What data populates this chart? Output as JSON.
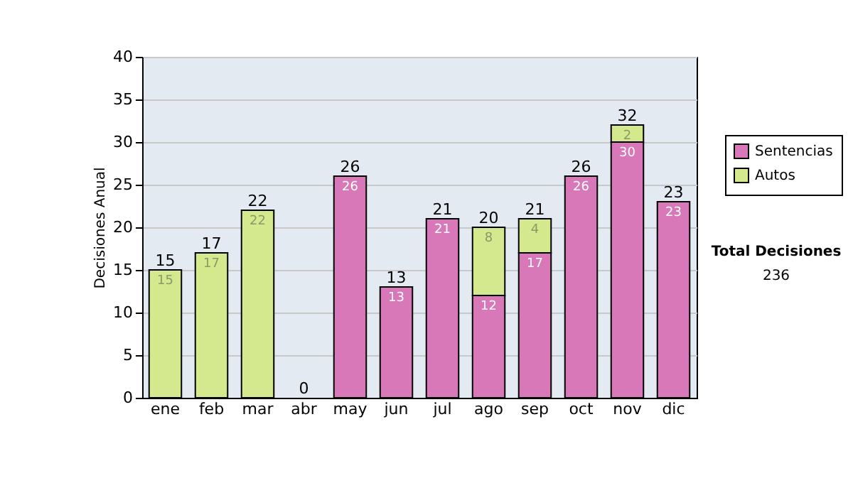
{
  "chart_data": {
    "type": "bar",
    "stacked": true,
    "ylabel": "Decisiones Anual",
    "categories": [
      "ene",
      "feb",
      "mar",
      "abr",
      "may",
      "jun",
      "jul",
      "ago",
      "sep",
      "oct",
      "nov",
      "dic"
    ],
    "series": [
      {
        "name": "Sentencias",
        "color": "#d878b8",
        "values": [
          null,
          null,
          null,
          null,
          26,
          13,
          21,
          12,
          17,
          26,
          30,
          23
        ]
      },
      {
        "name": "Autos",
        "color": "#d4e98e",
        "values": [
          15,
          17,
          22,
          null,
          null,
          null,
          null,
          8,
          4,
          null,
          2,
          null
        ]
      }
    ],
    "ylim": [
      0,
      40
    ],
    "yticks": [
      0,
      5,
      10,
      15,
      20,
      25,
      30,
      35,
      40
    ],
    "grid": "y",
    "legend": "right",
    "data_labels": true,
    "totals": [
      "15",
      "17",
      "22",
      "0",
      "26",
      "13",
      "21",
      "20",
      "21",
      "26",
      "32",
      "23"
    ],
    "annotations": [
      "Total Decisiones",
      "236"
    ]
  }
}
